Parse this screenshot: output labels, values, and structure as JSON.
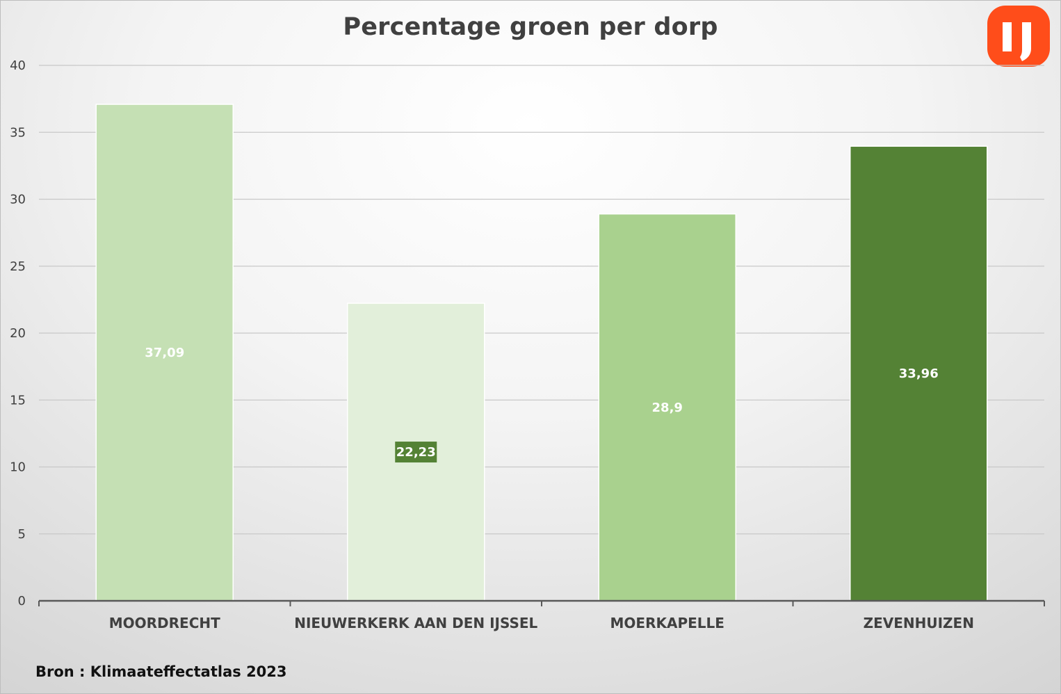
{
  "chart_data": {
    "type": "bar",
    "title": "Percentage groen per dorp",
    "xlabel": "",
    "ylabel": "",
    "categories": [
      "MOORDRECHT",
      "NIEUWERKERK AAN DEN IJSSEL",
      "MOERKAPELLE",
      "ZEVENHUIZEN"
    ],
    "values": [
      37.09,
      22.23,
      28.9,
      33.96
    ],
    "value_labels": [
      "37,09",
      "22,23",
      "28,9",
      "33,96"
    ],
    "bar_colors": [
      "#c5e0b4",
      "#e2efda",
      "#a9d18e",
      "#548235"
    ],
    "value_label_backgrounds": [
      null,
      "#548235",
      null,
      null
    ],
    "ylim": [
      0,
      40
    ],
    "y_ticks": [
      0,
      5,
      10,
      15,
      20,
      25,
      30,
      35,
      40
    ],
    "y_tick_labels": [
      "0",
      "5",
      "10",
      "15",
      "20",
      "25",
      "30",
      "35",
      "40"
    ],
    "grid": true,
    "legend": "none"
  },
  "source_note": "Bron : Klimaateffectatlas 2023",
  "logo": {
    "name": "ij-logo-icon",
    "color": "#ff4d1a"
  }
}
